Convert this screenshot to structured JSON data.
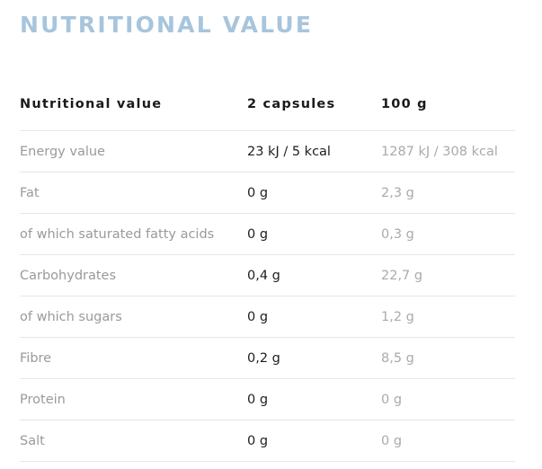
{
  "title": "NUTRITIONAL VALUE",
  "table": {
    "headers": [
      "Nutritional value",
      "2 capsules",
      "100 g"
    ],
    "rows": [
      {
        "name": "Energy value",
        "capsules": "23 kJ / 5 kcal",
        "per100": "1287 kJ / 308 kcal"
      },
      {
        "name": "Fat",
        "capsules": "0 g",
        "per100": "2,3 g"
      },
      {
        "name": "of which saturated fatty acids",
        "capsules": "0 g",
        "per100": "0,3 g"
      },
      {
        "name": "Carbohydrates",
        "capsules": "0,4 g",
        "per100": "22,7 g"
      },
      {
        "name": "of which sugars",
        "capsules": "0 g",
        "per100": "1,2 g"
      },
      {
        "name": "Fibre",
        "capsules": "0,2 g",
        "per100": "8,5 g"
      },
      {
        "name": "Protein",
        "capsules": "0 g",
        "per100": "0 g"
      },
      {
        "name": "Salt",
        "capsules": "0 g",
        "per100": "0 g"
      }
    ]
  }
}
